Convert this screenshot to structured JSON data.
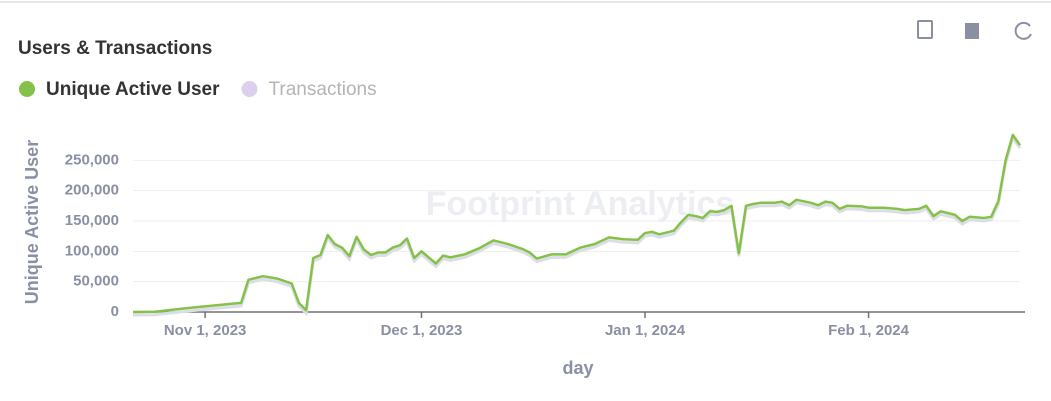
{
  "chart_data": {
    "type": "line",
    "title": "Users & Transactions",
    "watermark": "Footprint Analytics",
    "x_label": "day",
    "y_label": "Unique Active User",
    "x": [
      "2023-10-22",
      "2023-10-25",
      "2023-10-30",
      "2023-11-06",
      "2023-11-07",
      "2023-11-09",
      "2023-11-11",
      "2023-11-13",
      "2023-11-14",
      "2023-11-15",
      "2023-11-16",
      "2023-11-17",
      "2023-11-18",
      "2023-11-19",
      "2023-11-20",
      "2023-11-21",
      "2023-11-22",
      "2023-11-23",
      "2023-11-24",
      "2023-11-25",
      "2023-11-26",
      "2023-11-27",
      "2023-11-28",
      "2023-11-29",
      "2023-11-30",
      "2023-12-01",
      "2023-12-02",
      "2023-12-03",
      "2023-12-04",
      "2023-12-05",
      "2023-12-07",
      "2023-12-09",
      "2023-12-11",
      "2023-12-13",
      "2023-12-15",
      "2023-12-16",
      "2023-12-17",
      "2023-12-19",
      "2023-12-21",
      "2023-12-23",
      "2023-12-25",
      "2023-12-27",
      "2023-12-29",
      "2023-12-31",
      "2024-01-01",
      "2024-01-02",
      "2024-01-03",
      "2024-01-05",
      "2024-01-06",
      "2024-01-07",
      "2024-01-08",
      "2024-01-09",
      "2024-01-10",
      "2024-01-11",
      "2024-01-12",
      "2024-01-13",
      "2024-01-14",
      "2024-01-15",
      "2024-01-16",
      "2024-01-17",
      "2024-01-19",
      "2024-01-20",
      "2024-01-21",
      "2024-01-22",
      "2024-01-24",
      "2024-01-25",
      "2024-01-26",
      "2024-01-27",
      "2024-01-28",
      "2024-01-29",
      "2024-01-31",
      "2024-02-01",
      "2024-02-03",
      "2024-02-05",
      "2024-02-06",
      "2024-02-08",
      "2024-02-09",
      "2024-02-10",
      "2024-02-11",
      "2024-02-13",
      "2024-02-14",
      "2024-02-15",
      "2024-02-17",
      "2024-02-18",
      "2024-02-19",
      "2024-02-20",
      "2024-02-21",
      "2024-02-22"
    ],
    "series": [
      {
        "name": "Unique Active User",
        "color": "#84c149",
        "values": [
          0,
          500,
          7000,
          15000,
          53000,
          59000,
          55000,
          47000,
          15000,
          3000,
          89000,
          94000,
          127000,
          112000,
          106000,
          92000,
          124000,
          103000,
          94000,
          98000,
          98000,
          106000,
          110000,
          121000,
          89000,
          100000,
          90000,
          80000,
          93000,
          90000,
          95000,
          105000,
          118000,
          112000,
          104000,
          98000,
          88000,
          95000,
          95000,
          106000,
          112000,
          123000,
          120000,
          119000,
          130000,
          132000,
          128000,
          134000,
          148000,
          160000,
          158000,
          155000,
          166000,
          165000,
          168000,
          175000,
          97000,
          175000,
          178000,
          180000,
          180000,
          182000,
          176000,
          185000,
          180000,
          176000,
          182000,
          180000,
          170000,
          175000,
          174000,
          172000,
          172000,
          170000,
          168000,
          170000,
          175000,
          158000,
          166000,
          160000,
          150000,
          157000,
          155000,
          157000,
          183000,
          250000,
          292000,
          275000
        ]
      },
      {
        "name": "Transactions",
        "color": "#ddd0ec",
        "selected": false
      }
    ],
    "xlim": [
      "2023-10-22",
      "2024-02-22"
    ],
    "xticks": [
      {
        "value": "2023-11-01",
        "label": "Nov 1, 2023"
      },
      {
        "value": "2023-12-01",
        "label": "Dec 1, 2023"
      },
      {
        "value": "2024-01-01",
        "label": "Jan 1, 2024"
      },
      {
        "value": "2024-02-01",
        "label": "Feb 1, 2024"
      }
    ],
    "ylim": [
      0,
      300000
    ],
    "yticks": [
      0,
      {
        "value": 50000,
        "label": "50,000"
      },
      {
        "value": 100000,
        "label": "100,000"
      },
      {
        "value": 150000,
        "label": "150,000"
      },
      {
        "value": 200000,
        "label": "200,000"
      },
      {
        "value": 250000,
        "label": "250,000"
      }
    ],
    "grid": true
  }
}
